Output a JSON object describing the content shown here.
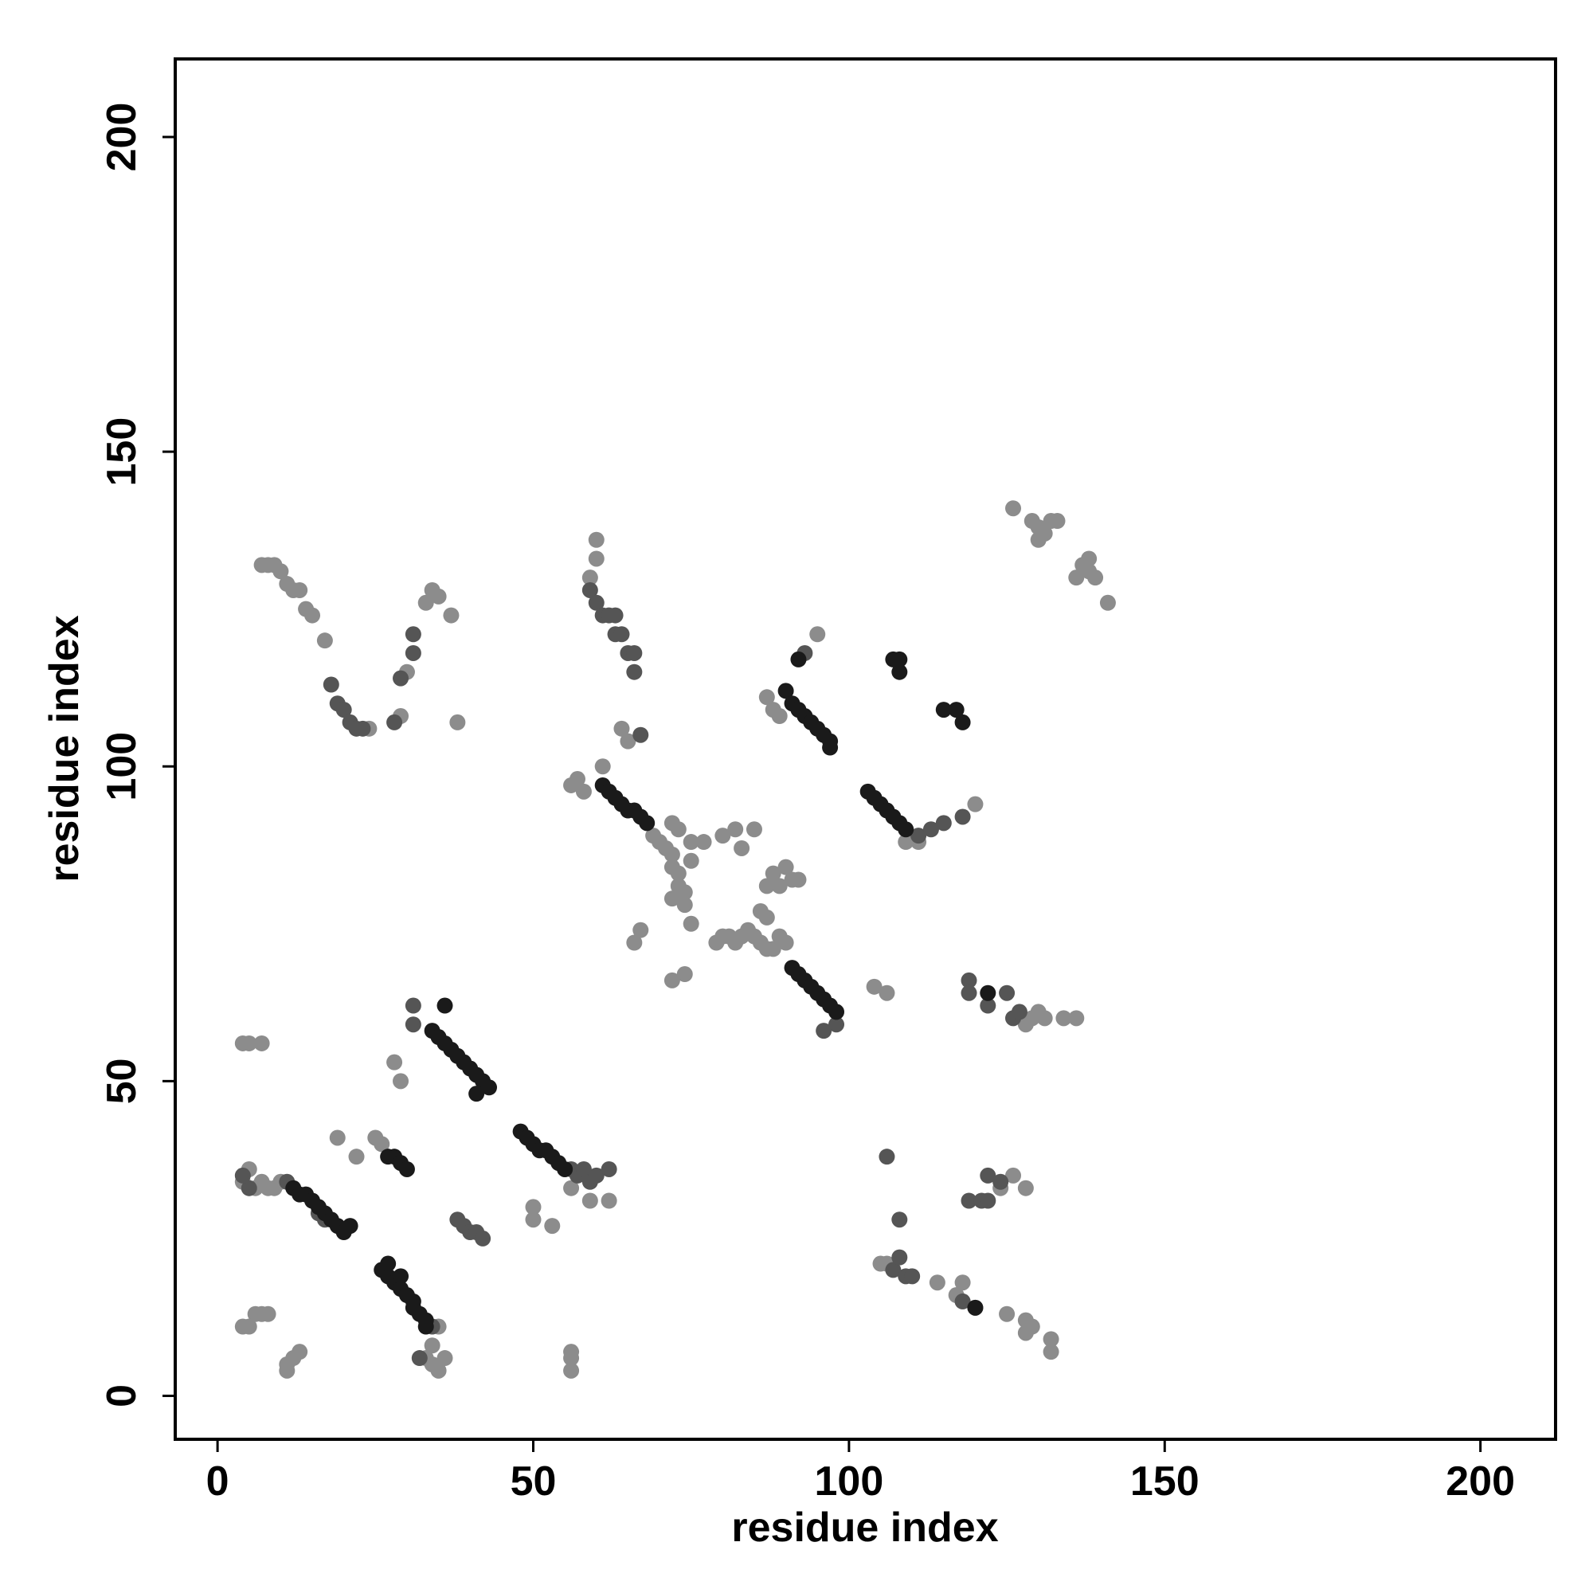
{
  "chart_data": {
    "type": "scatter",
    "xlabel": "residue index",
    "ylabel": "residue index",
    "xlim": [
      -6.7,
      211.9
    ],
    "ylim": [
      -6.9,
      212.4
    ],
    "xticks": [
      0,
      50,
      100,
      150,
      200
    ],
    "yticks": [
      0,
      50,
      100,
      150,
      200
    ],
    "series": [
      {
        "color": "#8c8c8c",
        "x": [
          4,
          5,
          6,
          7,
          8,
          9,
          10,
          5,
          33,
          34,
          35,
          34,
          35,
          36,
          25,
          26,
          50,
          50,
          53,
          56,
          59,
          62,
          56,
          57,
          58,
          61,
          69,
          70,
          71,
          72,
          72,
          73,
          73,
          72,
          74,
          73,
          72,
          75,
          75,
          74,
          79,
          80,
          81,
          82,
          83,
          84,
          85,
          86,
          87,
          88,
          89,
          90,
          86,
          87,
          87,
          88,
          89,
          95,
          109,
          111,
          120,
          7,
          8,
          9,
          10,
          11,
          12,
          13,
          14,
          15,
          17,
          24,
          29,
          33,
          34,
          35,
          37,
          38,
          30,
          59,
          60,
          60,
          64,
          65,
          126,
          129,
          130,
          131,
          132,
          133,
          130,
          136,
          137,
          138,
          138,
          139,
          141,
          104,
          106,
          128,
          129,
          130,
          131,
          134,
          136,
          105,
          106,
          114,
          117,
          118,
          120,
          125,
          128,
          128,
          129,
          132,
          132,
          124,
          126,
          128,
          118,
          4,
          5,
          6,
          7,
          8,
          11,
          11,
          12,
          13,
          4,
          5,
          7,
          56,
          56,
          56,
          19,
          22,
          28,
          29,
          77,
          75,
          66,
          67,
          74,
          72,
          80,
          82,
          85,
          83,
          88,
          89,
          90,
          91,
          92,
          87
        ],
        "values": [
          34,
          33,
          33,
          34,
          33,
          33,
          34,
          36,
          6,
          5,
          4,
          8,
          11,
          6,
          41,
          40,
          30,
          28,
          27,
          33,
          31,
          31,
          97,
          98,
          96,
          100,
          89,
          88,
          87,
          86,
          84,
          83,
          81,
          79,
          80,
          90,
          91,
          88,
          85,
          78,
          72,
          73,
          73,
          72,
          73,
          74,
          73,
          72,
          71,
          71,
          73,
          72,
          77,
          76,
          111,
          109,
          108,
          121,
          88,
          88,
          94,
          132,
          132,
          132,
          131,
          129,
          128,
          128,
          125,
          124,
          120,
          106,
          108,
          126,
          128,
          127,
          124,
          107,
          115,
          130,
          133,
          136,
          106,
          104,
          141,
          139,
          138,
          137,
          139,
          139,
          136,
          130,
          132,
          133,
          131,
          130,
          126,
          65,
          64,
          59,
          60,
          61,
          60,
          60,
          60,
          21,
          21,
          18,
          16,
          15,
          14,
          13,
          12,
          10,
          11,
          9,
          7,
          33,
          35,
          33,
          18,
          11,
          11,
          13,
          13,
          13,
          4,
          5,
          6,
          7,
          56,
          56,
          56,
          7,
          6,
          4,
          41,
          38,
          53,
          50,
          88,
          75,
          72,
          74,
          67,
          66,
          89,
          90,
          90,
          87,
          83,
          81,
          84,
          82,
          82,
          81
        ]
      },
      {
        "color": "#555555",
        "x": [
          5,
          11,
          16,
          17,
          38,
          39,
          40,
          41,
          42,
          32,
          34,
          31,
          31,
          56,
          57,
          58,
          59,
          60,
          62,
          18,
          19,
          20,
          21,
          22,
          23,
          28,
          29,
          31,
          31,
          59,
          60,
          61,
          62,
          63,
          63,
          64,
          65,
          66,
          66,
          67,
          122,
          125,
          126,
          127,
          119,
          119,
          107,
          108,
          109,
          110,
          118,
          119,
          121,
          122,
          122,
          124,
          108,
          106,
          96,
          98,
          111,
          113,
          115,
          118,
          93,
          4
        ],
        "values": [
          33,
          34,
          29,
          28,
          28,
          27,
          26,
          26,
          25,
          6,
          11,
          62,
          59,
          36,
          35,
          36,
          34,
          35,
          36,
          113,
          110,
          109,
          107,
          106,
          106,
          107,
          114,
          118,
          121,
          128,
          126,
          124,
          124,
          124,
          121,
          121,
          118,
          118,
          115,
          105,
          62,
          64,
          60,
          61,
          66,
          64,
          20,
          22,
          19,
          19,
          15,
          31,
          31,
          35,
          31,
          34,
          28,
          38,
          58,
          59,
          89,
          90,
          91,
          92,
          118,
          35
        ]
      },
      {
        "color": "#1a1a1a",
        "x": [
          12,
          13,
          14,
          15,
          16,
          17,
          18,
          19,
          20,
          21,
          26,
          27,
          27,
          28,
          29,
          29,
          30,
          31,
          31,
          32,
          33,
          33,
          27,
          28,
          29,
          30,
          34,
          35,
          36,
          37,
          38,
          39,
          40,
          41,
          42,
          43,
          41,
          36,
          48,
          49,
          50,
          51,
          52,
          53,
          54,
          55,
          61,
          62,
          63,
          64,
          65,
          66,
          67,
          68,
          91,
          92,
          93,
          94,
          95,
          96,
          97,
          98,
          90,
          91,
          92,
          93,
          94,
          95,
          96,
          97,
          97,
          92,
          103,
          104,
          105,
          106,
          107,
          108,
          109,
          107,
          108,
          108,
          115,
          117,
          118,
          120,
          122
        ],
        "values": [
          33,
          32,
          32,
          31,
          30,
          29,
          28,
          27,
          26,
          27,
          20,
          19,
          21,
          18,
          17,
          19,
          16,
          15,
          14,
          13,
          12,
          11,
          38,
          38,
          37,
          36,
          58,
          57,
          56,
          55,
          54,
          53,
          52,
          51,
          50,
          49,
          48,
          62,
          42,
          41,
          40,
          39,
          39,
          38,
          37,
          36,
          97,
          96,
          95,
          94,
          93,
          93,
          92,
          91,
          68,
          67,
          66,
          65,
          64,
          63,
          62,
          61,
          112,
          110,
          109,
          108,
          107,
          106,
          105,
          104,
          103,
          117,
          96,
          95,
          94,
          93,
          92,
          91,
          90,
          117,
          115,
          117,
          109,
          109,
          107,
          14,
          64
        ]
      }
    ]
  }
}
